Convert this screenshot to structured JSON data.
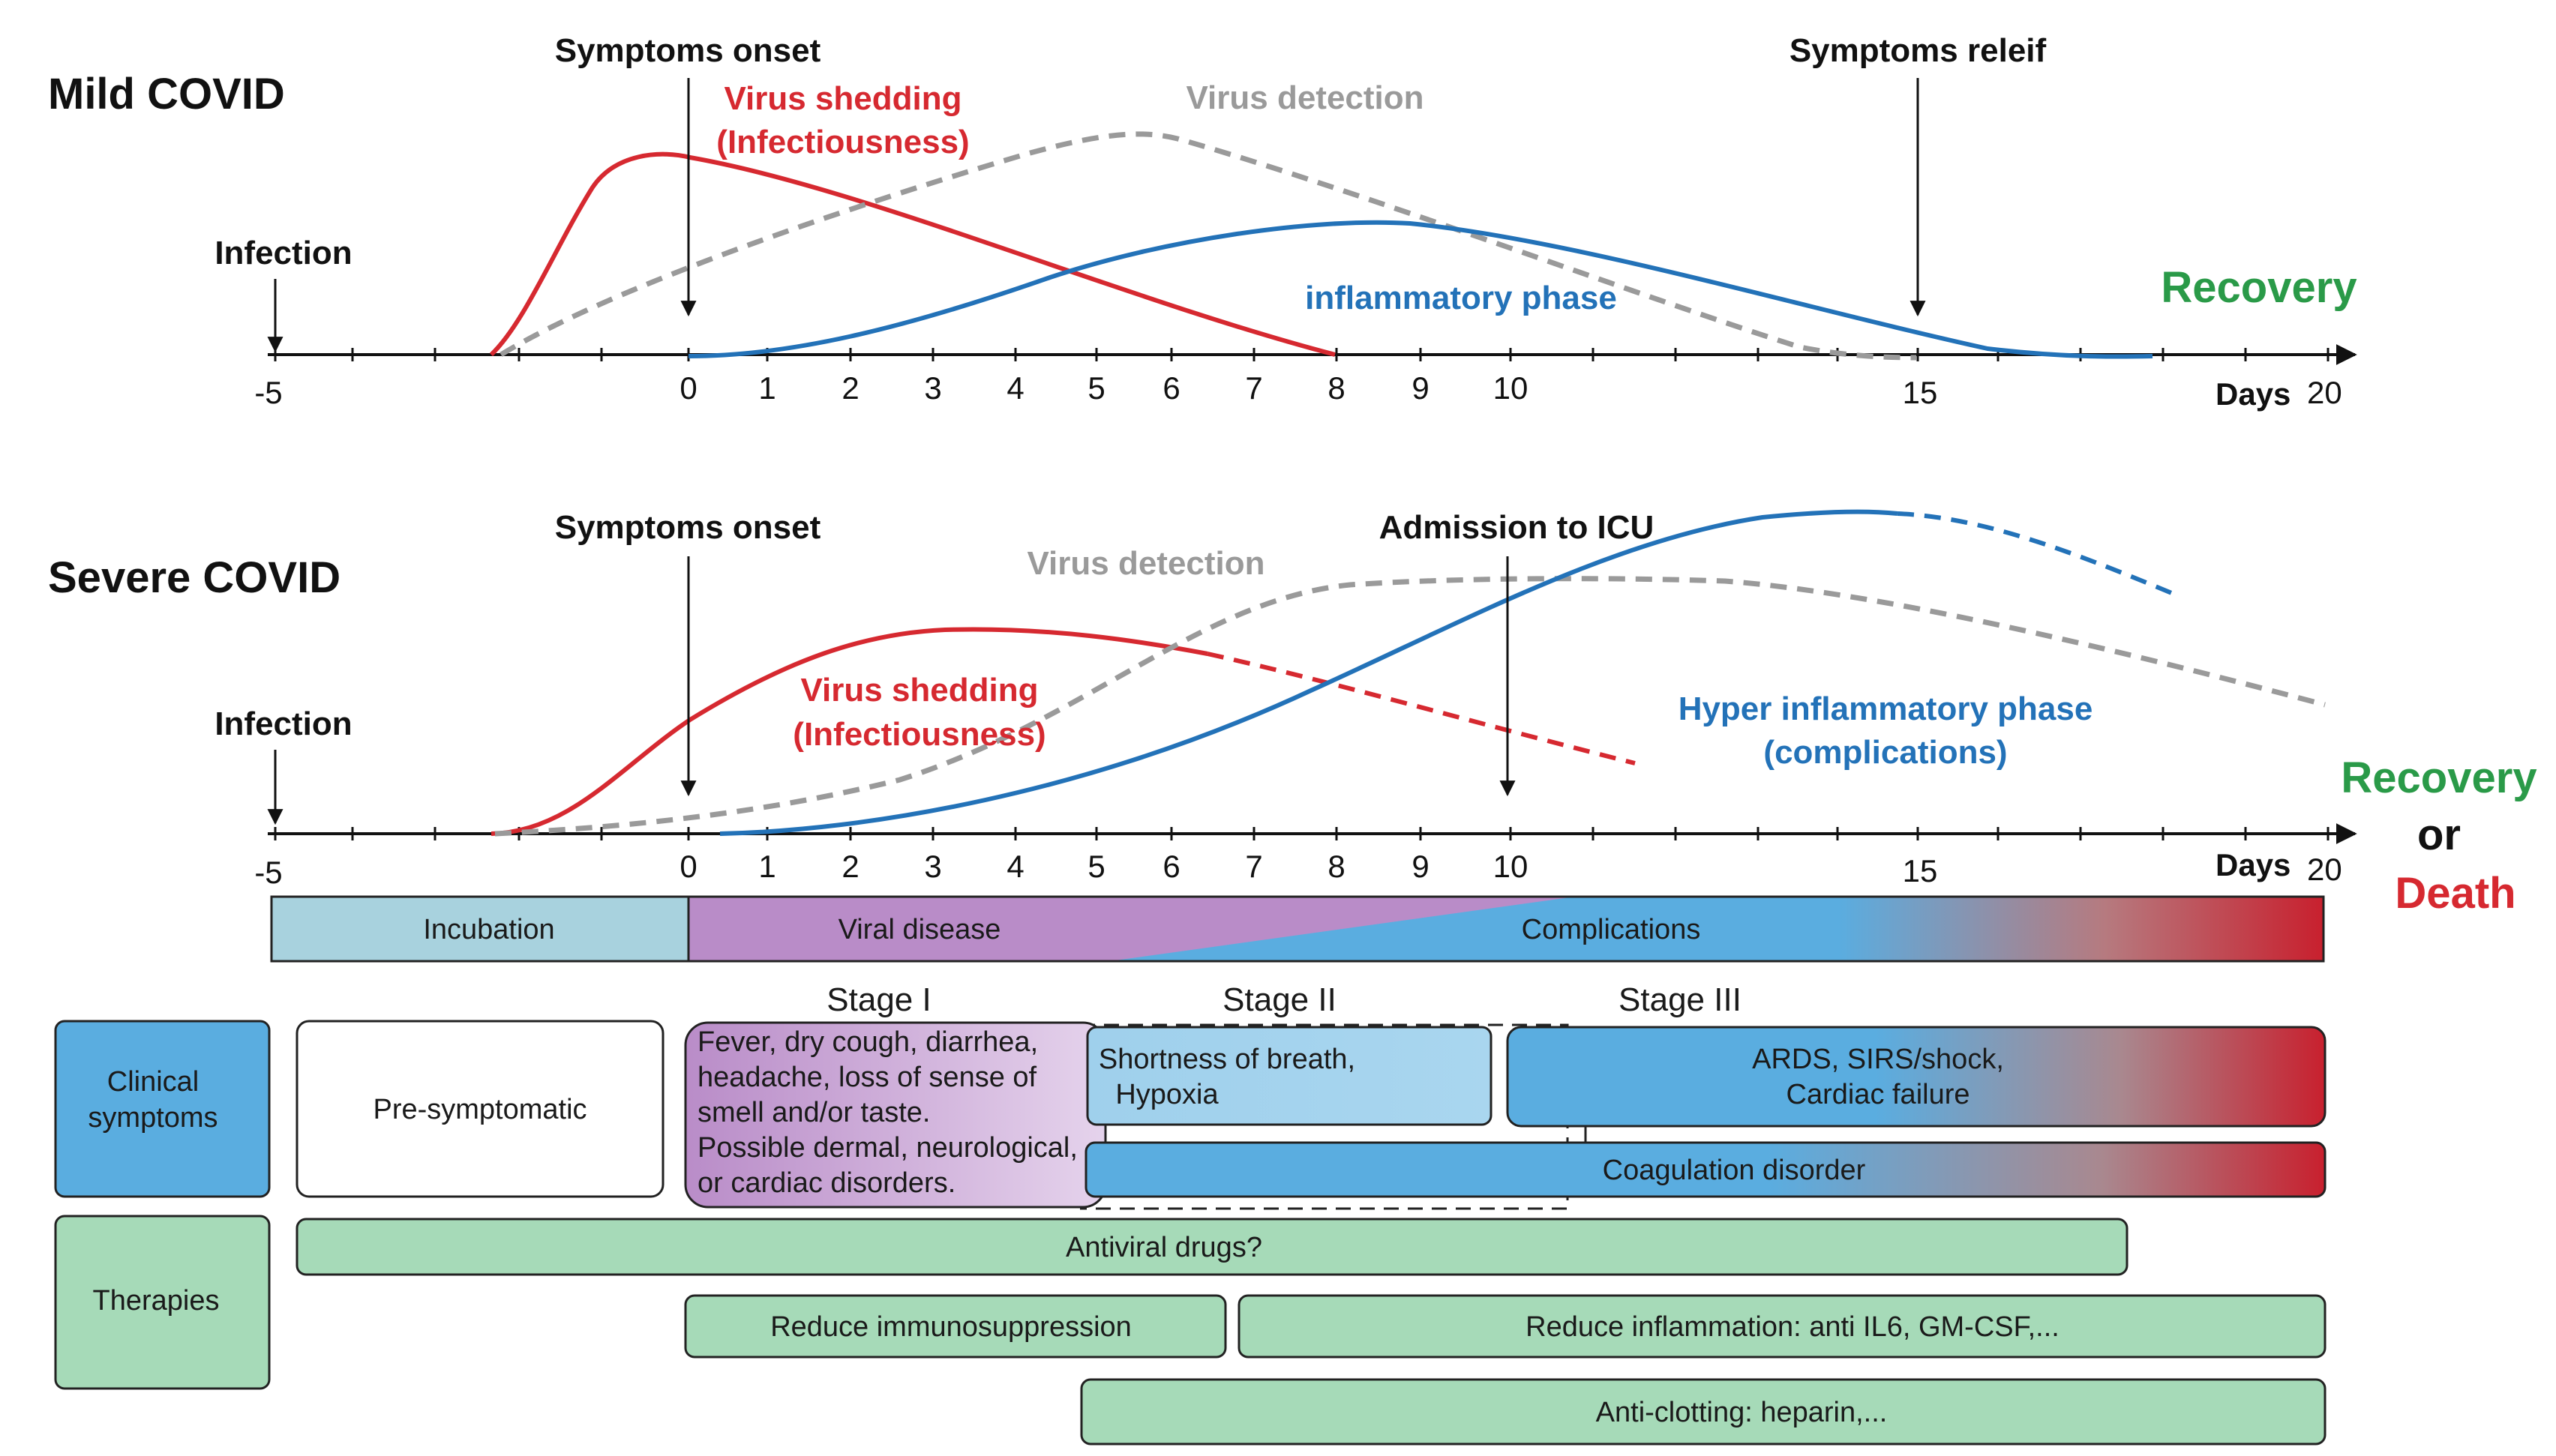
{
  "colors": {
    "red": "#d62930",
    "blue": "#2372b8",
    "grey": "#9a9a9a",
    "green": "#2a9a48",
    "incubation": "#a8d2de",
    "viral": "#b98cc8",
    "complications": "#5aade0",
    "therapy": "#a6dab8",
    "clinical_box": "#5aade0"
  },
  "mild": {
    "title": "Mild COVID",
    "symptoms_onset": "Symptoms onset",
    "symptoms_relief": "Symptoms releif",
    "infection": "Infection",
    "virus_shedding": "Virus shedding",
    "infectiousness": "(Infectiousness)",
    "virus_detection": "Virus detection",
    "inflammatory_phase": "inflammatory phase",
    "recovery": "Recovery",
    "days_label": "Days",
    "ticks": [
      "-5",
      "0",
      "1",
      "2",
      "3",
      "4",
      "5",
      "6",
      "7",
      "8",
      "9",
      "10",
      "15",
      "20"
    ]
  },
  "severe": {
    "title": "Severe COVID",
    "symptoms_onset": "Symptoms onset",
    "admission_icu": "Admission to ICU",
    "infection": "Infection",
    "virus_detection": "Virus detection",
    "virus_shedding": "Virus shedding",
    "infectiousness": "(Infectiousness)",
    "hyper_phase": "Hyper inflammatory phase",
    "complications_paren": "(complications)",
    "recovery": "Recovery",
    "or": "or",
    "death": "Death",
    "days_label": "Days",
    "ticks": [
      "-5",
      "0",
      "1",
      "2",
      "3",
      "4",
      "5",
      "6",
      "7",
      "8",
      "9",
      "10",
      "15",
      "20"
    ]
  },
  "phases": {
    "incubation": "Incubation",
    "viral_disease": "Viral disease",
    "complications": "Complications"
  },
  "stages": [
    "Stage I",
    "Stage II",
    "Stage III"
  ],
  "clinical": {
    "label_line1": "Clinical",
    "label_line2": "symptoms",
    "presymptomatic": "Pre-symptomatic",
    "stage1_lines": [
      "Fever, dry cough, diarrhea,",
      "headache, loss of sense of",
      "smell and/or taste.",
      "Possible dermal, neurological,",
      " or cardiac disorders."
    ],
    "stage2_line1": "Shortness of breath,",
    "stage2_line2": "Hypoxia",
    "stage3_line1": "ARDS, SIRS/shock,",
    "stage3_line2": "Cardiac failure",
    "coagulation": "Coagulation disorder"
  },
  "therapies": {
    "label": "Therapies",
    "antiviral": "Antiviral drugs?",
    "reduce_immuno": "Reduce immunosuppression",
    "reduce_inflam": "Reduce inflammation: anti IL6, GM-CSF,...",
    "anticlotting": "Anti-clotting: heparin,..."
  }
}
